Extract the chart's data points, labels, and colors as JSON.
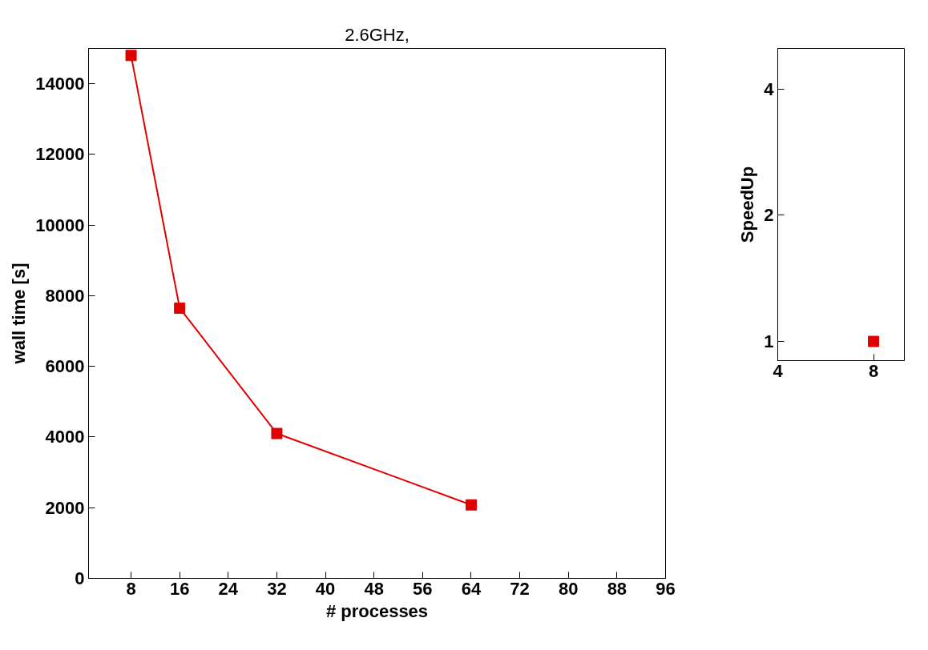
{
  "chart_data": [
    {
      "type": "line",
      "title": "2.6GHz,",
      "xlabel": "# processes",
      "ylabel": "wall time [s]",
      "marker": "square",
      "grid": false,
      "xlim": [
        1,
        96
      ],
      "xticks": [
        8,
        16,
        24,
        32,
        40,
        48,
        56,
        64,
        72,
        80,
        88,
        96
      ],
      "ylim": [
        0,
        15000
      ],
      "yticks": [
        0,
        2000,
        4000,
        6000,
        8000,
        10000,
        12000,
        14000
      ],
      "series": [
        {
          "color": "#e00000",
          "x": [
            8,
            16,
            32,
            64
          ],
          "values": [
            14800,
            7650,
            4100,
            2080
          ]
        }
      ]
    },
    {
      "type": "line",
      "ylabel": "SpeedUp",
      "marker": "square",
      "grid": false,
      "log": "xy",
      "xlim": [
        4,
        10
      ],
      "xticks": [
        4,
        8
      ],
      "ylim": [
        0.9,
        5
      ],
      "yticks": [
        1,
        2,
        4
      ],
      "series": [
        {
          "color": "#e00000",
          "x": [
            8
          ],
          "values": [
            1
          ]
        }
      ]
    }
  ]
}
